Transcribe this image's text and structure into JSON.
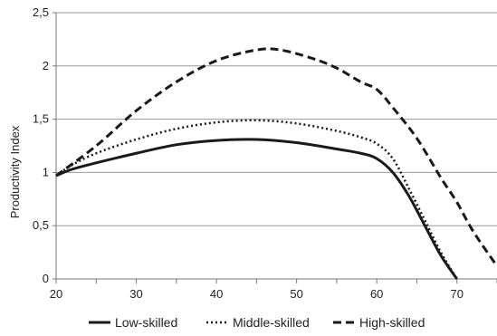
{
  "chart_data": {
    "type": "line",
    "title": "",
    "xlabel": "",
    "ylabel": "Productivity Index",
    "xlim": [
      20,
      75
    ],
    "ylim": [
      0,
      2.5
    ],
    "x_ticks": [
      20,
      30,
      40,
      50,
      60,
      70
    ],
    "y_ticks": [
      "0",
      "0,5",
      "1",
      "1,5",
      "2",
      "2,5"
    ],
    "grid": "horizontal",
    "legend_position": "bottom",
    "series": [
      {
        "name": "Low-skilled",
        "style": "solid",
        "color": "#1a1a1a",
        "points": [
          [
            20,
            0.97
          ],
          [
            22,
            1.03
          ],
          [
            25,
            1.09
          ],
          [
            30,
            1.18
          ],
          [
            35,
            1.26
          ],
          [
            40,
            1.3
          ],
          [
            45,
            1.31
          ],
          [
            50,
            1.28
          ],
          [
            55,
            1.22
          ],
          [
            58,
            1.18
          ],
          [
            60,
            1.13
          ],
          [
            62,
            1.0
          ],
          [
            64,
            0.78
          ],
          [
            66,
            0.5
          ],
          [
            68,
            0.22
          ],
          [
            70,
            0.0
          ]
        ]
      },
      {
        "name": "Middle-skilled",
        "style": "dotted",
        "color": "#1a1a1a",
        "points": [
          [
            20,
            0.97
          ],
          [
            22,
            1.07
          ],
          [
            25,
            1.18
          ],
          [
            30,
            1.31
          ],
          [
            35,
            1.41
          ],
          [
            40,
            1.47
          ],
          [
            45,
            1.49
          ],
          [
            50,
            1.46
          ],
          [
            55,
            1.39
          ],
          [
            58,
            1.33
          ],
          [
            60,
            1.27
          ],
          [
            62,
            1.13
          ],
          [
            64,
            0.85
          ],
          [
            66,
            0.55
          ],
          [
            68,
            0.25
          ],
          [
            70,
            0.0
          ]
        ]
      },
      {
        "name": "High-skilled",
        "style": "dashed",
        "color": "#1a1a1a",
        "points": [
          [
            20,
            0.97
          ],
          [
            25,
            1.25
          ],
          [
            30,
            1.58
          ],
          [
            35,
            1.85
          ],
          [
            40,
            2.05
          ],
          [
            45,
            2.15
          ],
          [
            48,
            2.15
          ],
          [
            52,
            2.07
          ],
          [
            55,
            1.98
          ],
          [
            58,
            1.85
          ],
          [
            60,
            1.78
          ],
          [
            62,
            1.61
          ],
          [
            65,
            1.32
          ],
          [
            68,
            0.95
          ],
          [
            70,
            0.72
          ],
          [
            72,
            0.45
          ],
          [
            75,
            0.12
          ]
        ]
      }
    ]
  }
}
